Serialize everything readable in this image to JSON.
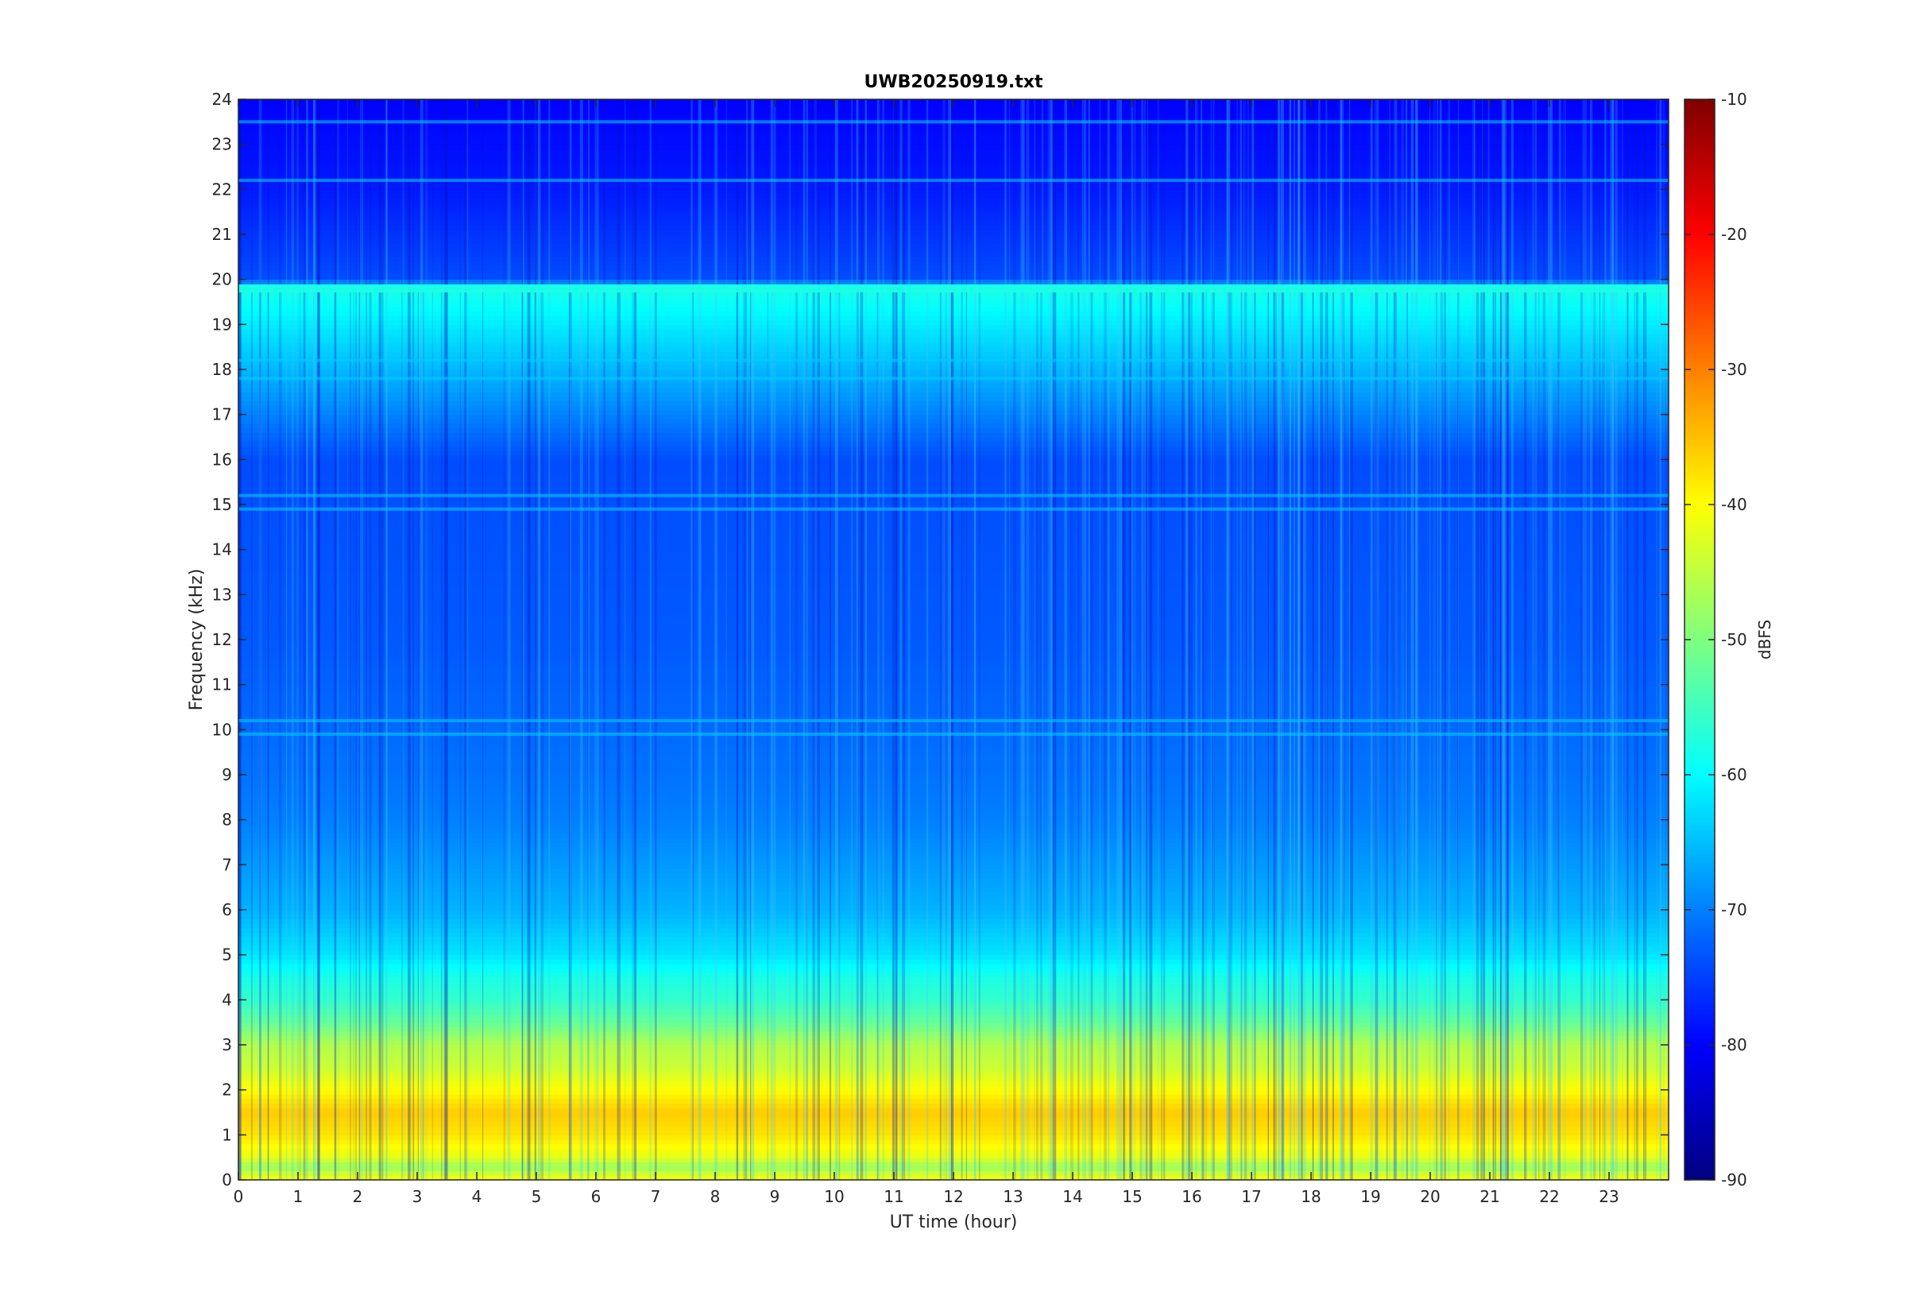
{
  "chart_data": {
    "type": "heatmap",
    "title": "UWB20250919.txt",
    "xlabel": "UT time (hour)",
    "ylabel": "Frequency (kHz)",
    "xlim": [
      0,
      24
    ],
    "ylim": [
      0,
      24
    ],
    "x_ticks": [
      0,
      1,
      2,
      3,
      4,
      5,
      6,
      7,
      8,
      9,
      10,
      11,
      12,
      13,
      14,
      15,
      16,
      17,
      18,
      19,
      20,
      21,
      22,
      23
    ],
    "y_ticks": [
      0,
      1,
      2,
      3,
      4,
      5,
      6,
      7,
      8,
      9,
      10,
      11,
      12,
      13,
      14,
      15,
      16,
      17,
      18,
      19,
      20,
      21,
      22,
      23,
      24
    ],
    "colorbar": {
      "label": "dBFS",
      "range": [
        -90,
        -10
      ],
      "ticks": [
        -90,
        -80,
        -70,
        -60,
        -50,
        -40,
        -30,
        -20,
        -10
      ],
      "colormap": "jet"
    },
    "intensity_profile_khz_dbfs": [
      [
        0,
        -40
      ],
      [
        0.3,
        -48
      ],
      [
        0.5,
        -42
      ],
      [
        1,
        -38
      ],
      [
        1.5,
        -36
      ],
      [
        2,
        -40
      ],
      [
        2.5,
        -44
      ],
      [
        3,
        -46
      ],
      [
        3.5,
        -52
      ],
      [
        4,
        -56
      ],
      [
        4.5,
        -58
      ],
      [
        5,
        -62
      ],
      [
        6,
        -66
      ],
      [
        7,
        -68
      ],
      [
        8,
        -70
      ],
      [
        9,
        -71
      ],
      [
        12,
        -73
      ],
      [
        16,
        -74
      ],
      [
        19.8,
        -58
      ],
      [
        20,
        -74
      ],
      [
        21,
        -76
      ],
      [
        22,
        -78
      ],
      [
        24,
        -80
      ]
    ],
    "persistent_lines_khz": [
      19.8,
      18.2,
      17.8,
      15.2,
      14.9,
      10.2,
      9.9,
      23.5,
      22.2
    ],
    "grid": false
  }
}
